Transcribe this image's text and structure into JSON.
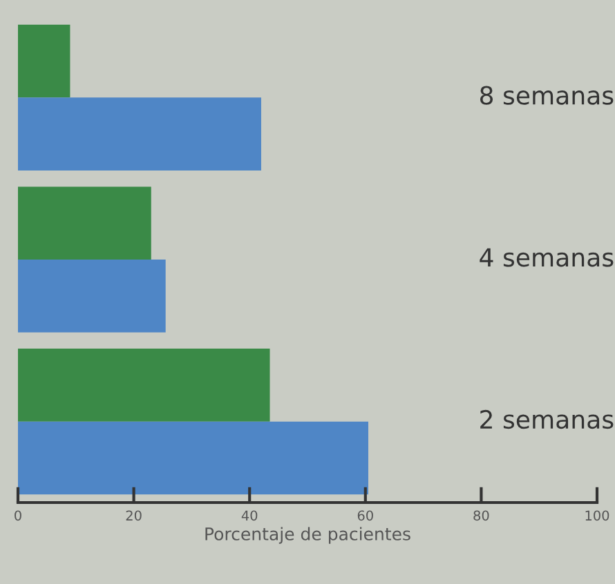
{
  "chart_data": {
    "type": "bar",
    "orientation": "horizontal",
    "xlabel": "Porcentaje de pacientes",
    "categories": [
      "8 semanas",
      "4 semanas",
      "2 semanas"
    ],
    "series": [
      {
        "color": "#3a8a47",
        "values": [
          9,
          23,
          43.5
        ]
      },
      {
        "color": "#4f86c6",
        "values": [
          42,
          25.5,
          60.5
        ]
      }
    ],
    "xlim": [
      0,
      100
    ],
    "xticks": [
      0,
      20,
      40,
      60,
      80,
      100
    ],
    "grid": false
  }
}
